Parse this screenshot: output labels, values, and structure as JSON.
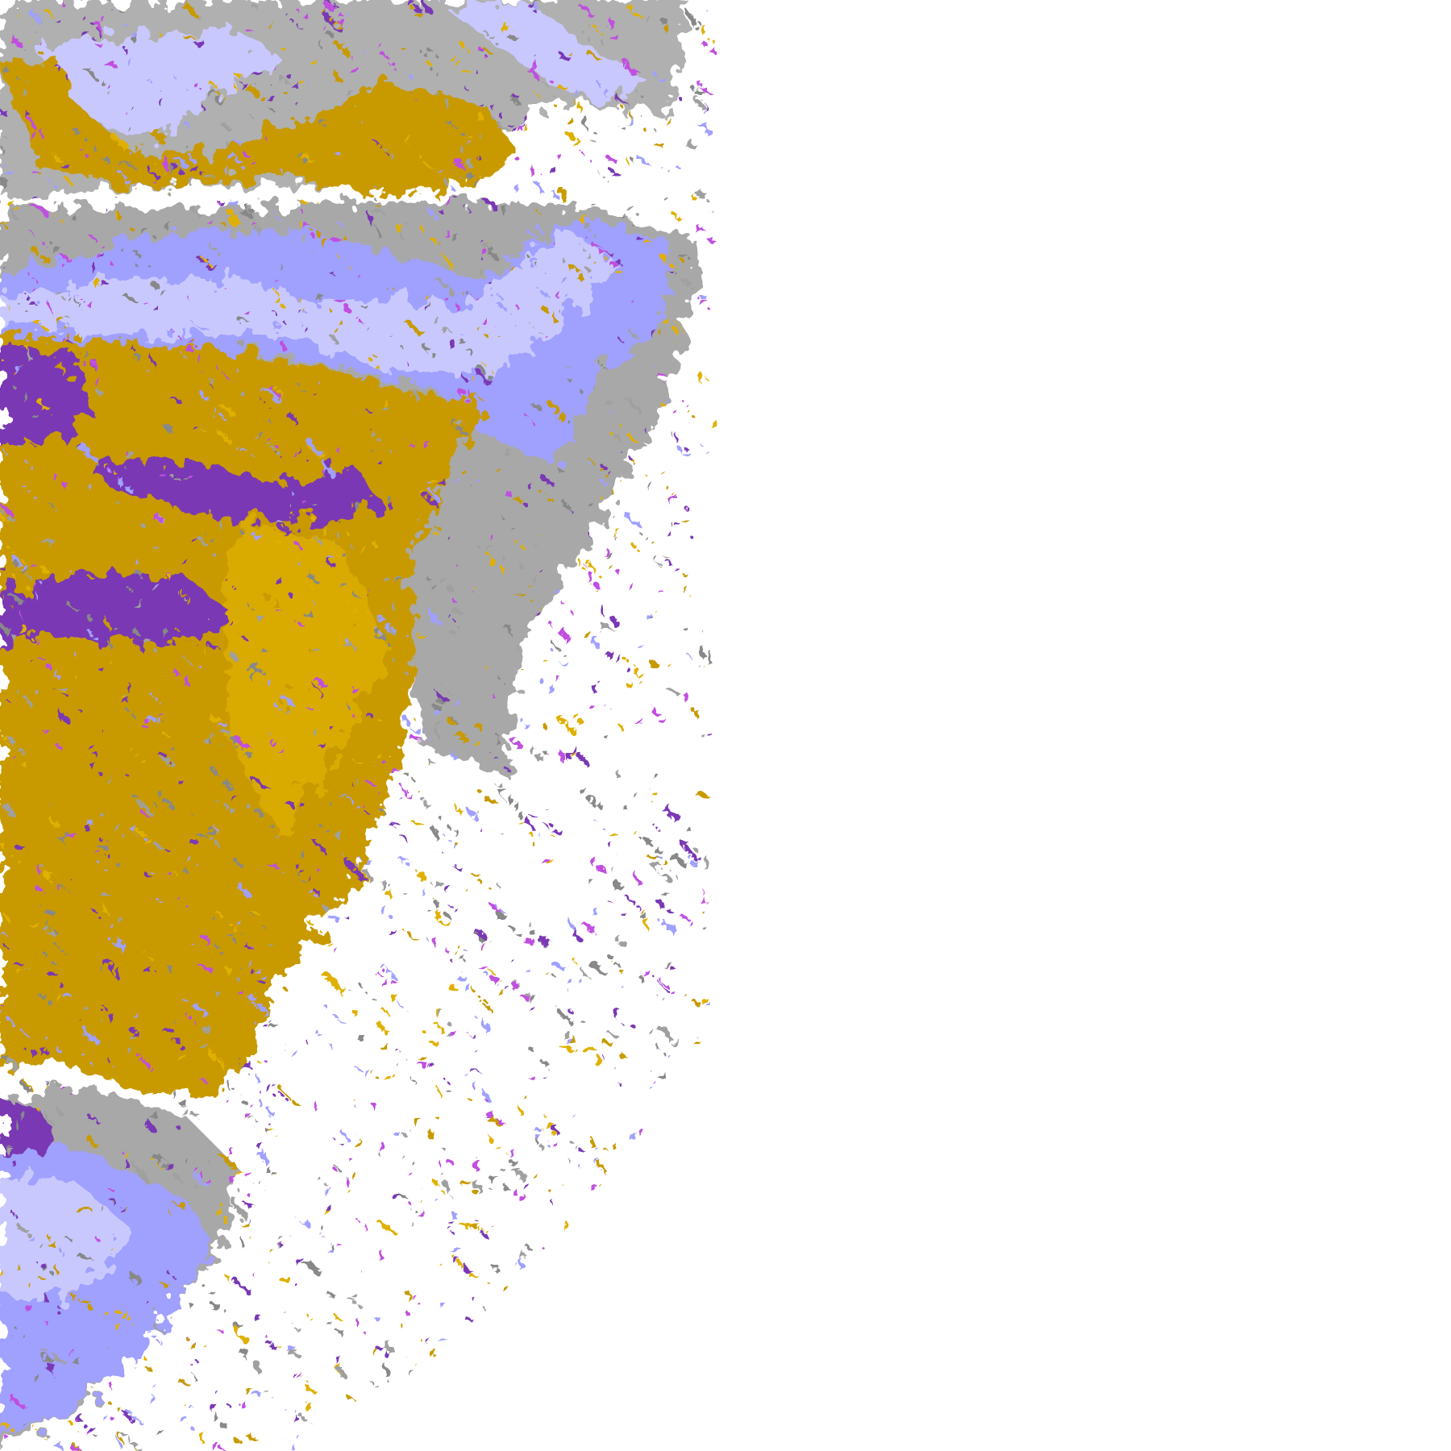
{
  "image": {
    "kind": "satellite cloud classification composite",
    "background": "#ffffff",
    "palette": {
      "gold": "#c89a00",
      "gold_light": "#e0b000",
      "purple": "#7a38b4",
      "magenta": "#c050e0",
      "lavender": "#c8c8ff",
      "periwinkle": "#a0a0ff",
      "pale": "#eeeeff",
      "gray": "#a0a0a0",
      "gray_dark": "#888888"
    }
  }
}
